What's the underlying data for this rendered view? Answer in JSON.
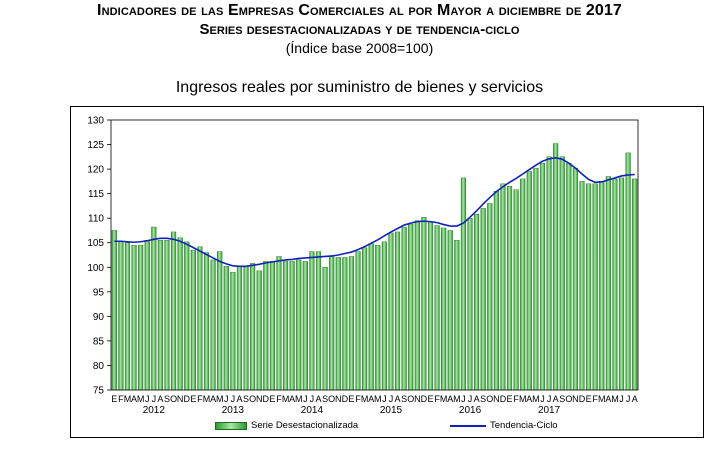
{
  "header": {
    "title_line1": "Indicadores de las Empresas Comerciales al por Mayor a diciembre de 2017",
    "title_line2": "Series desestacionalizadas y de tendencia-ciclo",
    "title_line3": "(Índice base 2008=100)"
  },
  "colors": {
    "bar_fill": "#2f9a2f",
    "bar_highlight": "#a6e8a6",
    "trend_line": "#1122bb"
  },
  "chart_data": {
    "type": "bar",
    "title": "Ingresos reales por suministro de bienes y servicios",
    "ylim": [
      75,
      130
    ],
    "y_ticks": [
      75,
      80,
      85,
      90,
      95,
      100,
      105,
      110,
      115,
      120,
      125,
      130
    ],
    "grid": false,
    "legend_position": "bottom",
    "month_labels": [
      "E",
      "F",
      "M",
      "A",
      "M",
      "J",
      "J",
      "A",
      "S",
      "O",
      "N",
      "D"
    ],
    "years": [
      "2012",
      "2013",
      "2014",
      "2015",
      "2016",
      "2017"
    ],
    "series": [
      {
        "name": "Serie Desestacionalizada",
        "kind": "bar",
        "values": [
          107.5,
          105.2,
          105.0,
          104.5,
          104.5,
          105.5,
          108.2,
          105.5,
          105.5,
          107.2,
          106.0,
          105.2,
          103.5,
          104.2,
          103.0,
          101.5,
          103.2,
          100.2,
          99.0,
          100.3,
          100.3,
          100.8,
          99.3,
          101.2,
          101.2,
          102.2,
          101.2,
          101.2,
          101.5,
          101.2,
          103.2,
          103.2,
          100.0,
          102.2,
          102.0,
          102.0,
          102.2,
          103.2,
          104.0,
          104.8,
          104.5,
          105.2,
          107.0,
          107.2,
          108.2,
          108.8,
          109.5,
          110.2,
          109.2,
          108.5,
          108.0,
          107.5,
          105.5,
          118.2,
          110.0,
          110.8,
          112.0,
          113.0,
          115.5,
          117.0,
          116.5,
          115.8,
          118.0,
          119.5,
          120.2,
          121.2,
          122.5,
          125.2,
          122.5,
          121.2,
          120.2,
          117.5,
          117.0,
          117.0,
          117.5,
          118.5,
          118.0,
          118.2,
          123.3,
          118.0
        ]
      },
      {
        "name": "Tendencia-Ciclo",
        "kind": "line",
        "values": [
          105.3,
          105.3,
          105.2,
          105.1,
          105.2,
          105.4,
          105.7,
          105.9,
          105.9,
          105.7,
          105.3,
          104.7,
          104.0,
          103.3,
          102.6,
          101.9,
          101.2,
          100.7,
          100.3,
          100.2,
          100.2,
          100.4,
          100.6,
          100.9,
          101.1,
          101.3,
          101.5,
          101.6,
          101.8,
          101.9,
          102.0,
          102.1,
          102.2,
          102.3,
          102.5,
          102.8,
          103.1,
          103.6,
          104.2,
          104.9,
          105.6,
          106.4,
          107.2,
          107.9,
          108.6,
          109.0,
          109.3,
          109.4,
          109.3,
          109.1,
          108.7,
          108.4,
          108.4,
          109.0,
          110.2,
          111.5,
          112.9,
          114.2,
          115.4,
          116.4,
          117.3,
          118.1,
          119.0,
          119.9,
          120.8,
          121.6,
          122.1,
          122.3,
          122.0,
          121.2,
          120.2,
          119.0,
          117.9,
          117.3,
          117.4,
          117.8,
          118.2,
          118.6,
          118.8,
          118.9
        ]
      }
    ]
  }
}
